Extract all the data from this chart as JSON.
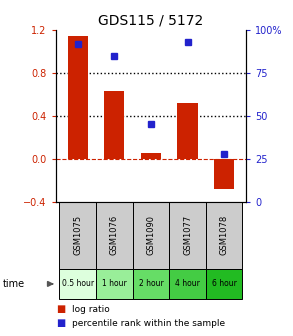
{
  "title": "GDS115 / 5172",
  "samples": [
    "GSM1075",
    "GSM1076",
    "GSM1090",
    "GSM1077",
    "GSM1078"
  ],
  "time_labels": [
    "0.5 hour",
    "1 hour",
    "2 hour",
    "4 hour",
    "6 hour"
  ],
  "log_ratios": [
    1.15,
    0.63,
    0.05,
    0.52,
    -0.28
  ],
  "percentile_ranks": [
    92,
    85,
    45,
    93,
    28
  ],
  "bar_color": "#cc2200",
  "dot_color": "#2222cc",
  "left_ylim": [
    -0.4,
    1.2
  ],
  "right_ylim": [
    0,
    100
  ],
  "left_yticks": [
    -0.4,
    0.0,
    0.4,
    0.8,
    1.2
  ],
  "right_yticks": [
    0,
    25,
    50,
    75,
    100
  ],
  "right_yticklabels": [
    "0",
    "25",
    "50",
    "75",
    "100%"
  ],
  "hline_dotted": [
    0.4,
    0.8
  ],
  "hline_zero": 0.0,
  "zero_line_color": "#cc2200",
  "time_colors": [
    "#ddffdd",
    "#99ee99",
    "#66dd66",
    "#44cc44",
    "#22bb22"
  ],
  "sample_bg_color": "#cccccc",
  "bar_width": 0.55,
  "title_fontsize": 10,
  "tick_fontsize": 7,
  "label_fontsize": 6,
  "time_fontsize": 5.5,
  "legend_fontsize": 6.5
}
